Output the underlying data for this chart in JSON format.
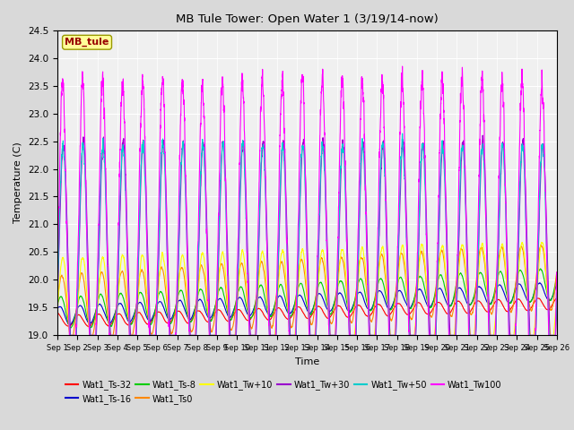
{
  "title": "MB Tule Tower: Open Water 1 (3/19/14-now)",
  "xlabel": "Time",
  "ylabel": "Temperature (C)",
  "ylim": [
    19.0,
    24.5
  ],
  "series_colors": {
    "Wat1_Ts-32": "#ff0000",
    "Wat1_Ts-16": "#0000cc",
    "Wat1_Ts-8": "#00cc00",
    "Wat1_Ts0": "#ff8800",
    "Wat1_Tw+10": "#ffff00",
    "Wat1_Tw+30": "#9900cc",
    "Wat1_Tw+50": "#00cccc",
    "Wat1_Tw100": "#ff00ff"
  },
  "annotation_text": "MB_tule",
  "annotation_box_color": "#ffff99",
  "annotation_text_color": "#990000",
  "background_color": "#d9d9d9",
  "plot_bg_color": "#f0f0f0",
  "grid_color": "#ffffff"
}
